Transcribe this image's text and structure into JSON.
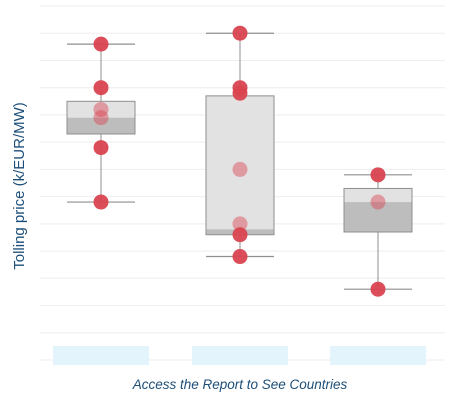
{
  "chart_data": {
    "type": "box",
    "title": "",
    "xlabel": "Access the Report to See Countries",
    "ylabel": "Tolling price (k/EUR/MW)",
    "categories": [
      "",
      "",
      ""
    ],
    "ylim": [
      0,
      13
    ],
    "grid": true,
    "boxes": [
      {
        "min": 5.8,
        "q1": 8.3,
        "median": 8.9,
        "q3": 9.5,
        "max": 11.6,
        "points": [
          11.6,
          10.0,
          9.2,
          8.9,
          7.8,
          5.8
        ]
      },
      {
        "min": 3.8,
        "q1": 4.6,
        "median": 4.8,
        "q3": 9.7,
        "max": 12.0,
        "points": [
          12.0,
          10.0,
          9.8,
          7.0,
          5.0,
          4.6,
          3.8
        ]
      },
      {
        "min": 2.6,
        "q1": 4.7,
        "median": 5.8,
        "q3": 6.3,
        "max": 6.8,
        "points": [
          6.8,
          5.8,
          2.6
        ]
      }
    ],
    "colors": {
      "box_light": "#e2e2e2",
      "box_dark": "#bdbdbd",
      "whisker": "#8f8f8f",
      "point": "#d9434f",
      "gridline": "#eeeeee",
      "category_band": "#e3f4fd",
      "text": "#1d4e78"
    }
  }
}
